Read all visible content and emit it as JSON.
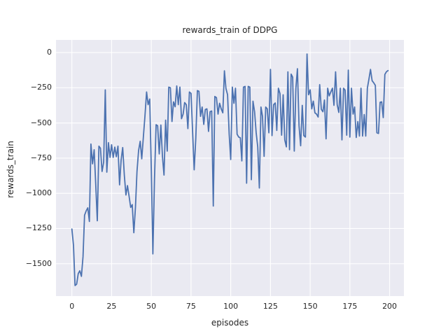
{
  "chart_data": {
    "type": "line",
    "title": "rewards_train of DDPG",
    "xlabel": "episodes",
    "ylabel": "rewards_train",
    "grid": true,
    "legend": false,
    "plot_bg_color": "#eaeaf2",
    "grid_color": "#ffffff",
    "line_color": "#4c72b0",
    "text_color": "#262626",
    "xlim": [
      -10,
      209
    ],
    "ylim": [
      -1730,
      90
    ],
    "xticks": [
      0,
      25,
      50,
      75,
      100,
      125,
      150,
      175,
      200
    ],
    "yticks": [
      0,
      -250,
      -500,
      -750,
      -1000,
      -1250,
      -1500
    ],
    "x_start": 0,
    "x_step": 1,
    "series": [
      {
        "name": "rewards_train",
        "values": [
          -1253,
          -1370,
          -1655,
          -1645,
          -1570,
          -1550,
          -1590,
          -1450,
          -1155,
          -1125,
          -1103,
          -1200,
          -650,
          -790,
          -690,
          -930,
          -1195,
          -665,
          -680,
          -845,
          -778,
          -265,
          -850,
          -640,
          -745,
          -655,
          -745,
          -672,
          -740,
          -665,
          -940,
          -765,
          -675,
          -870,
          -1012,
          -945,
          -1020,
          -1100,
          -1080,
          -1280,
          -1100,
          -845,
          -695,
          -630,
          -755,
          -600,
          -450,
          -280,
          -370,
          -330,
          -840,
          -1430,
          -900,
          -512,
          -520,
          -720,
          -515,
          -740,
          -870,
          -480,
          -700,
          -245,
          -250,
          -490,
          -350,
          -385,
          -237,
          -370,
          -245,
          -470,
          -437,
          -355,
          -370,
          -540,
          -280,
          -290,
          -570,
          -833,
          -610,
          -270,
          -275,
          -453,
          -387,
          -510,
          -405,
          -400,
          -560,
          -420,
          -415,
          -1090,
          -312,
          -320,
          -437,
          -360,
          -400,
          -428,
          -130,
          -255,
          -300,
          -580,
          -760,
          -245,
          -360,
          -253,
          -580,
          -600,
          -605,
          -770,
          -245,
          -240,
          -928,
          -240,
          -245,
          -903,
          -345,
          -420,
          -567,
          -670,
          -962,
          -387,
          -453,
          -737,
          -387,
          -400,
          -570,
          -120,
          -590,
          -370,
          -358,
          -553,
          -253,
          -292,
          -587,
          -300,
          -620,
          -670,
          -137,
          -690,
          -153,
          -175,
          -700,
          -253,
          -115,
          -520,
          -662,
          -375,
          -590,
          -600,
          -10,
          -300,
          -265,
          -400,
          -345,
          -428,
          -437,
          -458,
          -228,
          -403,
          -420,
          -337,
          -613,
          -253,
          -308,
          -280,
          -253,
          -375,
          -137,
          -370,
          -425,
          -253,
          -620,
          -253,
          -267,
          -587,
          -125,
          -600,
          -253,
          -437,
          -387,
          -603,
          -490,
          -593,
          -253,
          -593,
          -440,
          -593,
          -253,
          -187,
          -120,
          -200,
          -215,
          -233,
          -570,
          -575,
          -353,
          -350,
          -462,
          -155,
          -137,
          -128
        ]
      }
    ]
  }
}
